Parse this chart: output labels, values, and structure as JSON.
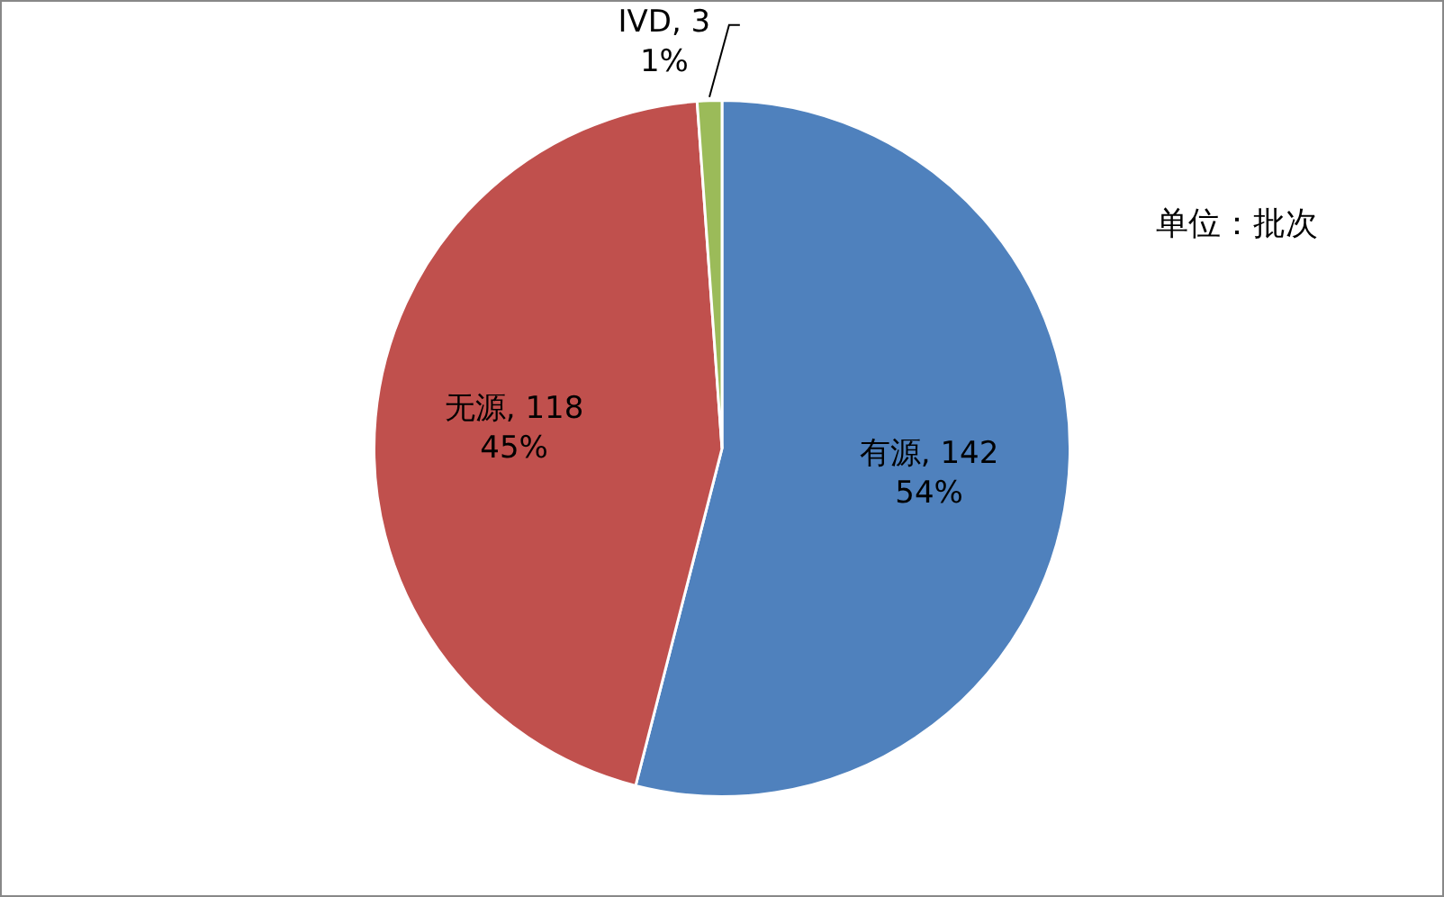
{
  "chart_data": {
    "type": "pie",
    "categories": [
      "有源",
      "无源",
      "IVD"
    ],
    "values": [
      142,
      118,
      3
    ],
    "colors": [
      "#4f81bd",
      "#c0504d",
      "#9bbb59"
    ],
    "value_labels": [
      ", 142\n54%",
      ", 118\n45%",
      ", 3\n1%"
    ],
    "legend": false,
    "annotations": [
      "单位：批次"
    ]
  }
}
